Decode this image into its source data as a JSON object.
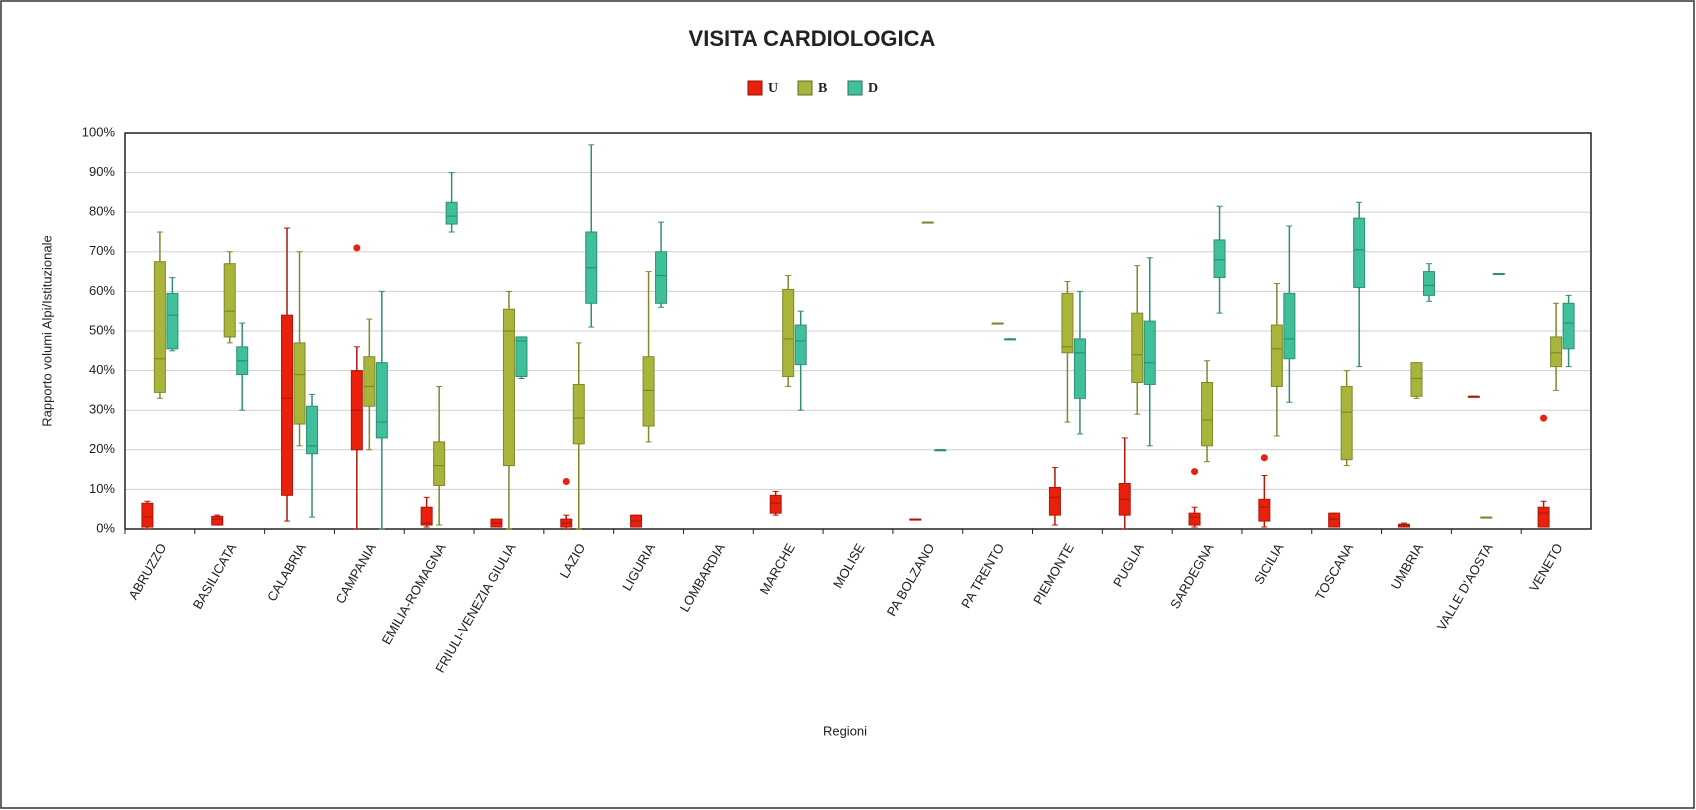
{
  "chart_data": {
    "type": "box",
    "title": "VISITA CARDIOLOGICA",
    "y_label": "Rapporto volumi Alpi/Istituzionale",
    "x_label": "Regioni",
    "categories": [
      "ABRUZZO",
      "BASILICATA",
      "CALABRIA",
      "CAMPANIA",
      "EMILIA-ROMAGNA",
      "FRIULI-VENEZIA GIULIA",
      "LAZIO",
      "LIGURIA",
      "LOMBARDIA",
      "MARCHE",
      "MOLISE",
      "PA BOLZANO",
      "PA TRENTO",
      "PIEMONTE",
      "PUGLIA",
      "SARDEGNA",
      "SICILIA",
      "TOSCANA",
      "UMBRIA",
      "VALLE D'AOSTA",
      "VENETO"
    ],
    "ylim": [
      0,
      100
    ],
    "yticks": [
      {
        "value": 0,
        "label": "0%"
      },
      {
        "value": 10,
        "label": "10%"
      },
      {
        "value": 20,
        "label": "20%"
      },
      {
        "value": 30,
        "label": "30%"
      },
      {
        "value": 40,
        "label": "40%"
      },
      {
        "value": 50,
        "label": "50%"
      },
      {
        "value": 60,
        "label": "60%"
      },
      {
        "value": 70,
        "label": "70%"
      },
      {
        "value": 80,
        "label": "80%"
      },
      {
        "value": 90,
        "label": "90%"
      },
      {
        "value": 100,
        "label": "100%"
      }
    ],
    "grid": true,
    "legend": "top",
    "series": [
      {
        "name": "U",
        "color": "#e8200c",
        "values": [
          [
            0,
            0.5,
            3,
            6.5,
            7
          ],
          [
            1,
            1,
            2.5,
            3.2,
            3.5
          ],
          [
            2,
            8.5,
            33,
            54,
            76
          ],
          [
            0,
            20,
            30,
            40,
            46
          ],
          [
            0.5,
            1,
            1.5,
            5.5,
            8
          ],
          [
            0.5,
            0.5,
            1.5,
            2.5,
            2.5
          ],
          [
            0,
            0.5,
            1.5,
            2.5,
            3.5
          ],
          [
            0.5,
            0.5,
            2,
            3.5,
            3.5
          ],
          null,
          [
            3.5,
            4,
            6.5,
            8.5,
            9.5
          ],
          null,
          [
            2.5,
            2.5,
            2.5,
            2.5,
            2.5
          ],
          null,
          [
            1,
            3.5,
            8,
            10.5,
            15.5
          ],
          [
            0,
            3.5,
            7.5,
            11.5,
            23
          ],
          [
            0.5,
            1,
            3,
            4,
            5.5
          ],
          [
            0.5,
            2,
            5.5,
            7.5,
            13.5
          ],
          [
            0.5,
            0.5,
            2.5,
            4,
            4
          ],
          [
            0.5,
            0.5,
            1,
            1.2,
            1.5
          ],
          [
            33.5,
            33.5,
            33.5,
            33.5,
            33.5
          ],
          [
            0.5,
            0.5,
            4,
            5.5,
            7
          ]
        ],
        "outliers": [
          [],
          [],
          [],
          [
            71
          ],
          [],
          [],
          [
            12
          ],
          [],
          [],
          [],
          [],
          [],
          [],
          [],
          [],
          [
            14.5
          ],
          [
            18
          ],
          [],
          [],
          [],
          [
            28
          ]
        ]
      },
      {
        "name": "B",
        "color": "#a8b53a",
        "values": [
          [
            33,
            34.5,
            43,
            67.5,
            75
          ],
          [
            47,
            48.5,
            55,
            67,
            70
          ],
          [
            21,
            26.5,
            39,
            47,
            70
          ],
          [
            20,
            31,
            36,
            43.5,
            53
          ],
          [
            1,
            11,
            16,
            22,
            36
          ],
          [
            0,
            16,
            50,
            55.5,
            60
          ],
          [
            0,
            21.5,
            28,
            36.5,
            47
          ],
          [
            22,
            26,
            35,
            43.5,
            65
          ],
          null,
          [
            36,
            38.5,
            48,
            60.5,
            64
          ],
          null,
          [
            77.5,
            77.5,
            77.5,
            77.5,
            77.5
          ],
          [
            52,
            52,
            52,
            52,
            52
          ],
          [
            27,
            44.5,
            46,
            59.5,
            62.5
          ],
          [
            29,
            37,
            44,
            54.5,
            66.5
          ],
          [
            17,
            21,
            27.5,
            37,
            42.5
          ],
          [
            23.5,
            36,
            45.5,
            51.5,
            62
          ],
          [
            16,
            17.5,
            29.5,
            36,
            40
          ],
          [
            33,
            33.5,
            38,
            42,
            42
          ],
          [
            3,
            3,
            3,
            3,
            3
          ],
          [
            35,
            41,
            44.5,
            48.5,
            57
          ]
        ],
        "outliers": [
          [],
          [],
          [],
          [],
          [],
          [],
          [],
          [],
          [],
          [],
          [],
          [],
          [],
          [],
          [],
          [],
          [],
          [],
          [],
          [],
          []
        ]
      },
      {
        "name": "D",
        "color": "#3fbf9a",
        "values": [
          [
            45,
            45.5,
            54,
            59.5,
            63.5
          ],
          [
            30,
            39,
            42.5,
            46,
            52
          ],
          [
            3,
            19,
            21,
            31,
            34
          ],
          [
            0,
            23,
            27,
            42,
            60
          ],
          [
            75,
            77,
            79,
            82.5,
            90
          ],
          [
            38,
            38.5,
            47.5,
            48.5,
            48.5
          ],
          [
            51,
            57,
            66,
            75,
            97
          ],
          [
            56,
            57,
            64,
            70,
            77.5
          ],
          null,
          [
            30,
            41.5,
            47.5,
            51.5,
            55
          ],
          null,
          [
            20,
            20,
            20,
            20,
            20
          ],
          [
            48,
            48,
            48,
            48,
            48
          ],
          [
            24,
            33,
            44.5,
            48,
            60
          ],
          [
            21,
            36.5,
            42,
            52.5,
            68.5
          ],
          [
            54.5,
            63.5,
            68,
            73,
            81.5
          ],
          [
            32,
            43,
            48,
            59.5,
            76.5
          ],
          [
            41,
            61,
            70.5,
            78.5,
            82.5
          ],
          [
            57.5,
            59,
            61.5,
            65,
            67
          ],
          [
            64.5,
            64.5,
            64.5,
            64.5,
            64.5
          ],
          [
            41,
            45.5,
            52,
            57,
            59
          ]
        ],
        "outliers": [
          [],
          [],
          [],
          [],
          [],
          [],
          [],
          [],
          [],
          [],
          [],
          [],
          [],
          [],
          [],
          [],
          [],
          [],
          [],
          [],
          []
        ]
      }
    ]
  }
}
